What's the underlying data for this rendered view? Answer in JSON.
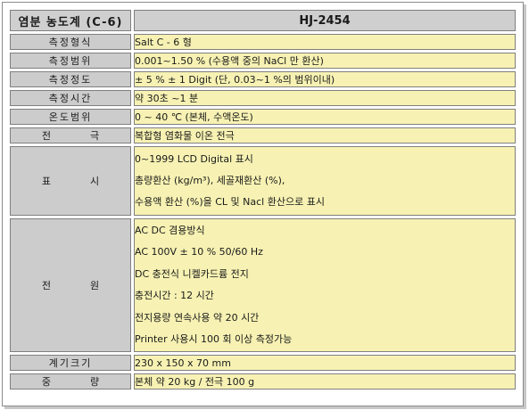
{
  "header": {
    "title": "염분 농도계  (C-6)",
    "model": "HJ-2454"
  },
  "rows": [
    {
      "label": "측정형식",
      "values": [
        "Salt C - 6 형"
      ]
    },
    {
      "label": "측정범위",
      "values": [
        "0.001~1.50 % (수용액 중의 NaCl 만 환산)"
      ]
    },
    {
      "label": "측정정도",
      "values": [
        "± 5 %  ± 1 Digit (단, 0.03~1 %의 범위이내)"
      ]
    },
    {
      "label": "측정시간",
      "values": [
        "약 30초 ~1 분"
      ]
    },
    {
      "label": "온도범위",
      "values": [
        "0 ~ 40 ℃ (본체, 수액온도)"
      ]
    },
    {
      "label": "전극",
      "values": [
        "복합형 염화물 이온 전극"
      ]
    },
    {
      "label": "표시",
      "values": [
        "0~1999 LCD Digital 표시",
        "총량환산 (kg/m³), 세골재환산 (%),",
        "수용액 환산 (%)을 CL 및 Nacl 환산으로 표시"
      ]
    },
    {
      "label": "전원",
      "values": [
        "AC DC 겸용방식",
        "AC 100V ± 10 % 50/60 Hz",
        "DC 충전식 니켈카드륨 전지",
        "충전시간 : 12 시간",
        "전지용량 연속사용 약 20 시간",
        "Printer 사용시 100 회 이상 측정가능"
      ]
    },
    {
      "label": "계기크기",
      "values": [
        "230 x 150 x 70 mm"
      ]
    },
    {
      "label": "중량",
      "values": [
        "본체 약 20 kg / 전극 100 g"
      ]
    }
  ]
}
